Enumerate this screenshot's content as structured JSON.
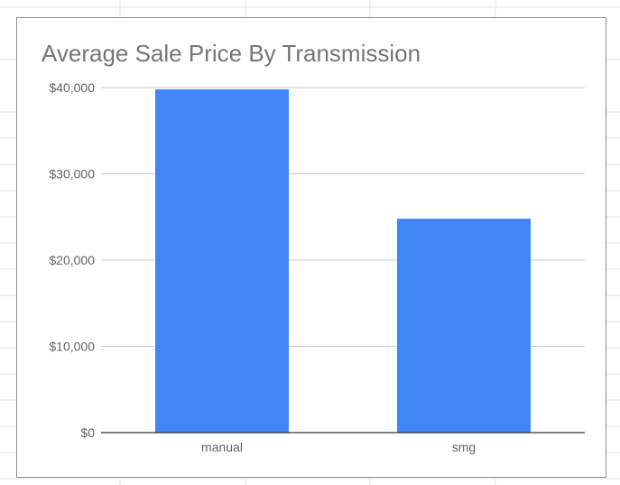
{
  "chart_data": {
    "type": "bar",
    "title": "Average Sale Price By Transmission",
    "categories": [
      "manual",
      "smg"
    ],
    "values": [
      39800,
      24800
    ],
    "ylim": [
      0,
      40000
    ],
    "yticks": [
      0,
      10000,
      20000,
      30000,
      40000
    ],
    "ytick_labels": [
      "$0",
      "$10,000",
      "$20,000",
      "$30,000",
      "$40,000"
    ],
    "xlabel": "",
    "ylabel": "",
    "grid": true,
    "legend": "none",
    "bar_color": "#4285f4"
  }
}
